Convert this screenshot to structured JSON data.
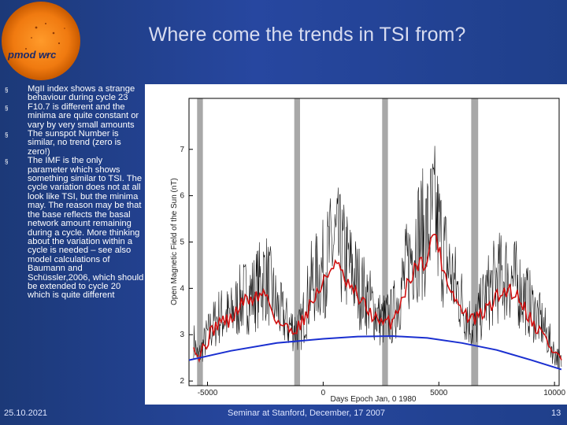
{
  "slide": {
    "title": "Where come the trends in TSI from?",
    "logo_text": "pmod wrc",
    "bullets": [
      "MgII index shows a strange behaviour during cycle 23",
      "F10.7 is different and the minima are quite constant or vary by very small amounts",
      "The sunspot Number is similar, no trend (zero is zero!)",
      "The IMF is the only parameter which shows something similar to TSI. The cycle variation does not at all look like TSI, but the minima may. The reason may be that the base reflects the basal network amount remaining during a cycle. More thinking about the variation within a cycle is needed – see also model calculations of Baumann and Schüssler,2006, which should be extended to cycle 20 which is quite different"
    ],
    "bullet_symbol": "§"
  },
  "footer": {
    "date": "25.10.2021",
    "center": "Seminar at Stanford, December, 17 2007",
    "page": "13"
  },
  "chart_data": {
    "type": "line",
    "title": "",
    "xlabel": "Days Epoch Jan, 0 1980",
    "ylabel": "Open Magnetic Field of the Sun (nT)",
    "xlim": [
      -5800,
      10200
    ],
    "ylim": [
      1.9,
      8.1
    ],
    "xticks": [
      -5000,
      0,
      5000,
      10000
    ],
    "yticks": [
      2,
      3,
      4,
      5,
      6,
      7
    ],
    "grid": false,
    "minima_bands_x": [
      [
        -5450,
        -5200
      ],
      [
        -1250,
        -1000
      ],
      [
        2550,
        2800
      ],
      [
        6400,
        6700
      ]
    ],
    "series": [
      {
        "style": "black-noisy",
        "x": [
          -5600,
          -5400,
          -5000,
          -4500,
          -4000,
          -3500,
          -3000,
          -2500,
          -2000,
          -1500,
          -1000,
          -500,
          0,
          500,
          1000,
          1500,
          2000,
          2500,
          3000,
          3500,
          4000,
          4500,
          4800,
          5200,
          5600,
          6000,
          6500,
          7000,
          7500,
          8000,
          8500,
          9000,
          9500,
          10000,
          10300
        ],
        "y": [
          2.9,
          2.5,
          3.0,
          3.4,
          3.4,
          3.8,
          3.9,
          4.3,
          3.6,
          3.2,
          3.1,
          4.1,
          4.4,
          5.0,
          4.6,
          4.1,
          3.7,
          3.3,
          3.4,
          4.2,
          5.1,
          5.2,
          5.6,
          4.8,
          4.2,
          3.7,
          3.1,
          3.8,
          4.2,
          4.3,
          4.0,
          3.6,
          3.2,
          2.6,
          2.4
        ]
      },
      {
        "style": "red-smoothed",
        "x": [
          -5600,
          -5400,
          -5000,
          -4500,
          -4000,
          -3500,
          -3000,
          -2500,
          -2000,
          -1500,
          -1000,
          -500,
          0,
          500,
          1000,
          1500,
          2000,
          2500,
          3000,
          3500,
          4000,
          4500,
          4800,
          5200,
          5600,
          6000,
          6500,
          7000,
          7500,
          8000,
          8500,
          9000,
          9500,
          10000,
          10300
        ],
        "y": [
          2.9,
          2.5,
          2.9,
          3.3,
          3.3,
          3.7,
          3.8,
          3.9,
          3.3,
          3.1,
          3.2,
          3.7,
          4.1,
          4.6,
          4.1,
          3.8,
          3.5,
          3.2,
          3.3,
          3.9,
          4.5,
          4.6,
          5.3,
          4.4,
          3.9,
          3.5,
          3.3,
          3.5,
          3.8,
          4.0,
          3.8,
          3.3,
          3.0,
          2.6,
          2.5
        ]
      },
      {
        "style": "blue-trend",
        "x": [
          -5800,
          -4000,
          -2000,
          0,
          1500,
          3000,
          4500,
          6000,
          7500,
          9000,
          10300
        ],
        "y": [
          2.45,
          2.65,
          2.82,
          2.91,
          2.96,
          2.97,
          2.93,
          2.82,
          2.67,
          2.45,
          2.25
        ]
      }
    ]
  }
}
